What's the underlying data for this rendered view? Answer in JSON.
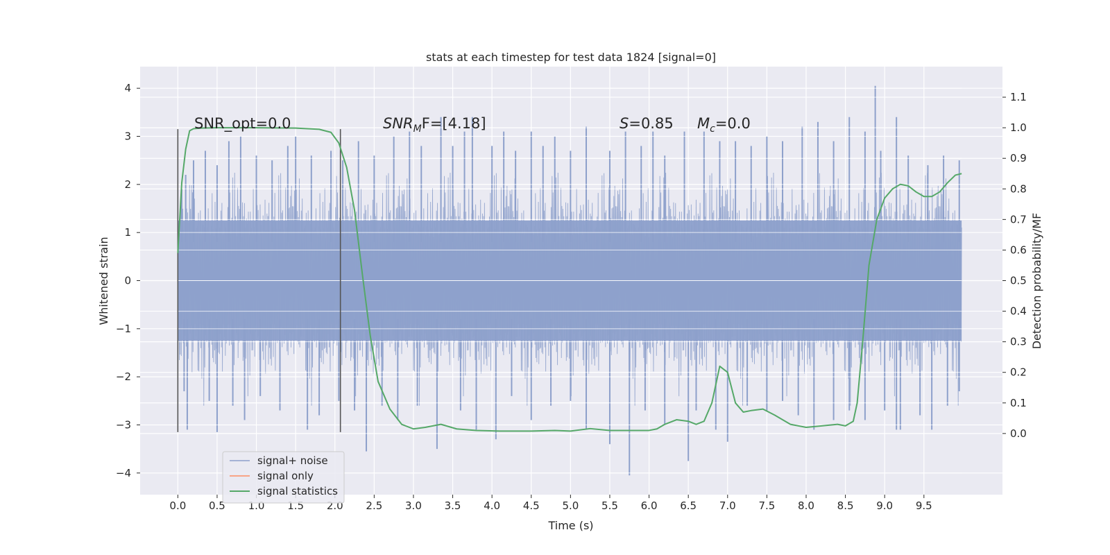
{
  "chart_data": {
    "type": "line",
    "title": "stats at each timestep for test data 1824 [signal=0]",
    "xlabel": "Time (s)",
    "ylabel": "Whitened strain",
    "ylabel_right": "Detection probability/MF",
    "xlim": [
      -0.48,
      10.5
    ],
    "ylim": [
      -4.45,
      4.45
    ],
    "ylim_right": [
      -0.2,
      1.2
    ],
    "x_ticks": [
      0.0,
      0.5,
      1.0,
      1.5,
      2.0,
      2.5,
      3.0,
      3.5,
      4.0,
      4.5,
      5.0,
      5.5,
      6.0,
      6.5,
      7.0,
      7.5,
      8.0,
      8.5,
      9.0,
      9.5
    ],
    "x_tick_labels": [
      "0.0",
      "0.5",
      "1.0",
      "1.5",
      "2.0",
      "2.5",
      "3.0",
      "3.5",
      "4.0",
      "4.5",
      "5.0",
      "5.5",
      "6.0",
      "6.5",
      "7.0",
      "7.5",
      "8.0",
      "8.5",
      "9.0",
      "9.5"
    ],
    "y_ticks": [
      4,
      3,
      2,
      1,
      0,
      -1,
      -2,
      -3,
      -4
    ],
    "y_tick_labels": [
      "4",
      "3",
      "2",
      "1",
      "0",
      "−1",
      "−2",
      "−3",
      "−4"
    ],
    "y_right_ticks": [
      1.1,
      1.0,
      0.9,
      0.8,
      0.7,
      0.6,
      0.5,
      0.4,
      0.3,
      0.2,
      0.1,
      0.0
    ],
    "y_right_tick_labels": [
      "1.1",
      "1.0",
      "0.9",
      "0.8",
      "0.7",
      "0.6",
      "0.5",
      "0.4",
      "0.3",
      "0.2",
      "0.1",
      "0.0"
    ],
    "grid": true,
    "legend_position": "lower-left",
    "vertical_markers": [
      {
        "x": 0.0,
        "y_range": [
          -3.15,
          3.15
        ]
      },
      {
        "x": 2.07,
        "y_range": [
          -3.15,
          3.15
        ]
      }
    ],
    "annotations": {
      "snr_opt": "SNR_opt=0.0",
      "snr_mf_prefix": "SNR",
      "snr_mf_sub": "M",
      "snr_mf_suffix": "F=[4.18]",
      "s_var": "S",
      "s_value": "=0.85",
      "mc_var": "M",
      "mc_sub": "c",
      "mc_value": "=0.0"
    },
    "series": [
      {
        "name": "signal+ noise",
        "color": "#8da0cb",
        "x_range": [
          0.0,
          9.98
        ],
        "band": [
          -1.25,
          1.25
        ],
        "peaks_up": [
          [
            0.05,
            1.9
          ],
          [
            0.1,
            2.2
          ],
          [
            0.2,
            2.5
          ],
          [
            0.35,
            2.7
          ],
          [
            0.5,
            2.4
          ],
          [
            0.65,
            2.9
          ],
          [
            0.8,
            3.0
          ],
          [
            1.0,
            2.6
          ],
          [
            1.2,
            2.5
          ],
          [
            1.4,
            2.8
          ],
          [
            1.5,
            3.0
          ],
          [
            1.7,
            2.6
          ],
          [
            1.95,
            2.7
          ],
          [
            2.1,
            2.5
          ],
          [
            2.3,
            2.9
          ],
          [
            2.5,
            2.6
          ],
          [
            2.75,
            3.0
          ],
          [
            2.95,
            3.1
          ],
          [
            3.1,
            2.8
          ],
          [
            3.35,
            3.4
          ],
          [
            3.5,
            2.8
          ],
          [
            3.65,
            3.1
          ],
          [
            3.75,
            3.4
          ],
          [
            4.0,
            2.8
          ],
          [
            4.15,
            3.1
          ],
          [
            4.3,
            2.7
          ],
          [
            4.5,
            3.1
          ],
          [
            4.65,
            2.8
          ],
          [
            4.8,
            3.0
          ],
          [
            5.0,
            2.7
          ],
          [
            5.2,
            3.2
          ],
          [
            5.5,
            2.7
          ],
          [
            5.7,
            3.1
          ],
          [
            5.9,
            2.8
          ],
          [
            6.05,
            3.1
          ],
          [
            6.2,
            2.6
          ],
          [
            6.45,
            3.1
          ],
          [
            6.7,
            3.1
          ],
          [
            6.9,
            2.9
          ],
          [
            7.1,
            2.9
          ],
          [
            7.3,
            2.8
          ],
          [
            7.5,
            3.0
          ],
          [
            7.7,
            2.9
          ],
          [
            7.95,
            3.2
          ],
          [
            8.15,
            3.3
          ],
          [
            8.35,
            2.9
          ],
          [
            8.55,
            3.4
          ],
          [
            8.75,
            3.1
          ],
          [
            8.88,
            4.05
          ],
          [
            8.95,
            2.7
          ],
          [
            9.15,
            3.4
          ],
          [
            9.3,
            2.6
          ],
          [
            9.55,
            2.4
          ],
          [
            9.75,
            2.6
          ],
          [
            9.95,
            2.5
          ]
        ],
        "peaks_down": [
          [
            0.08,
            -2.3
          ],
          [
            0.12,
            -3.1
          ],
          [
            0.4,
            -2.5
          ],
          [
            0.5,
            -3.15
          ],
          [
            0.7,
            -2.6
          ],
          [
            0.85,
            -2.9
          ],
          [
            1.05,
            -2.4
          ],
          [
            1.3,
            -2.7
          ],
          [
            1.65,
            -3.1
          ],
          [
            1.8,
            -2.8
          ],
          [
            2.05,
            -2.5
          ],
          [
            2.25,
            -2.7
          ],
          [
            2.4,
            -3.55
          ],
          [
            2.6,
            -2.6
          ],
          [
            2.8,
            -2.9
          ],
          [
            3.05,
            -2.6
          ],
          [
            3.3,
            -3.5
          ],
          [
            3.6,
            -2.7
          ],
          [
            3.8,
            -3.1
          ],
          [
            4.05,
            -3.3
          ],
          [
            4.25,
            -2.4
          ],
          [
            4.5,
            -2.9
          ],
          [
            4.75,
            -2.6
          ],
          [
            5.0,
            -2.5
          ],
          [
            5.2,
            -3.1
          ],
          [
            5.5,
            -3.4
          ],
          [
            5.75,
            -4.05
          ],
          [
            5.95,
            -2.7
          ],
          [
            6.2,
            -3.0
          ],
          [
            6.5,
            -3.75
          ],
          [
            6.6,
            -2.7
          ],
          [
            6.85,
            -3.1
          ],
          [
            7.0,
            -3.35
          ],
          [
            7.25,
            -2.6
          ],
          [
            7.5,
            -2.7
          ],
          [
            7.7,
            -2.5
          ],
          [
            7.9,
            -2.8
          ],
          [
            8.1,
            -3.1
          ],
          [
            8.35,
            -2.9
          ],
          [
            8.55,
            -2.7
          ],
          [
            8.75,
            -2.9
          ],
          [
            9.0,
            -2.7
          ],
          [
            9.15,
            -3.1
          ],
          [
            9.2,
            -3.1
          ],
          [
            9.45,
            -2.8
          ],
          [
            9.6,
            -3.1
          ],
          [
            9.8,
            -2.6
          ],
          [
            9.95,
            -2.3
          ]
        ]
      },
      {
        "name": "signal only",
        "color": "#fc8d62",
        "x": [],
        "y": []
      },
      {
        "name": "signal statistics",
        "color": "#55a868",
        "axis": "right",
        "x": [
          0.0,
          0.05,
          0.1,
          0.15,
          0.2,
          0.3,
          0.5,
          1.0,
          1.5,
          1.8,
          1.95,
          2.05,
          2.15,
          2.25,
          2.35,
          2.45,
          2.55,
          2.7,
          2.85,
          3.0,
          3.15,
          3.35,
          3.55,
          3.8,
          4.1,
          4.5,
          4.8,
          5.0,
          5.25,
          5.5,
          5.8,
          6.0,
          6.1,
          6.2,
          6.35,
          6.5,
          6.6,
          6.7,
          6.8,
          6.9,
          7.0,
          7.1,
          7.2,
          7.3,
          7.45,
          7.6,
          7.8,
          8.0,
          8.2,
          8.4,
          8.5,
          8.6,
          8.65,
          8.72,
          8.8,
          8.9,
          9.0,
          9.1,
          9.2,
          9.3,
          9.4,
          9.5,
          9.6,
          9.7,
          9.8,
          9.9,
          9.98
        ],
        "y": [
          0.59,
          0.82,
          0.93,
          0.99,
          0.997,
          0.999,
          1.0,
          1.0,
          0.999,
          0.995,
          0.985,
          0.95,
          0.87,
          0.73,
          0.52,
          0.32,
          0.17,
          0.08,
          0.03,
          0.015,
          0.02,
          0.03,
          0.015,
          0.01,
          0.008,
          0.008,
          0.01,
          0.008,
          0.016,
          0.01,
          0.01,
          0.01,
          0.015,
          0.03,
          0.045,
          0.04,
          0.03,
          0.04,
          0.1,
          0.22,
          0.2,
          0.1,
          0.07,
          0.075,
          0.08,
          0.06,
          0.03,
          0.02,
          0.025,
          0.03,
          0.025,
          0.04,
          0.1,
          0.3,
          0.55,
          0.7,
          0.77,
          0.8,
          0.815,
          0.81,
          0.79,
          0.775,
          0.775,
          0.79,
          0.82,
          0.845,
          0.85
        ]
      }
    ]
  }
}
